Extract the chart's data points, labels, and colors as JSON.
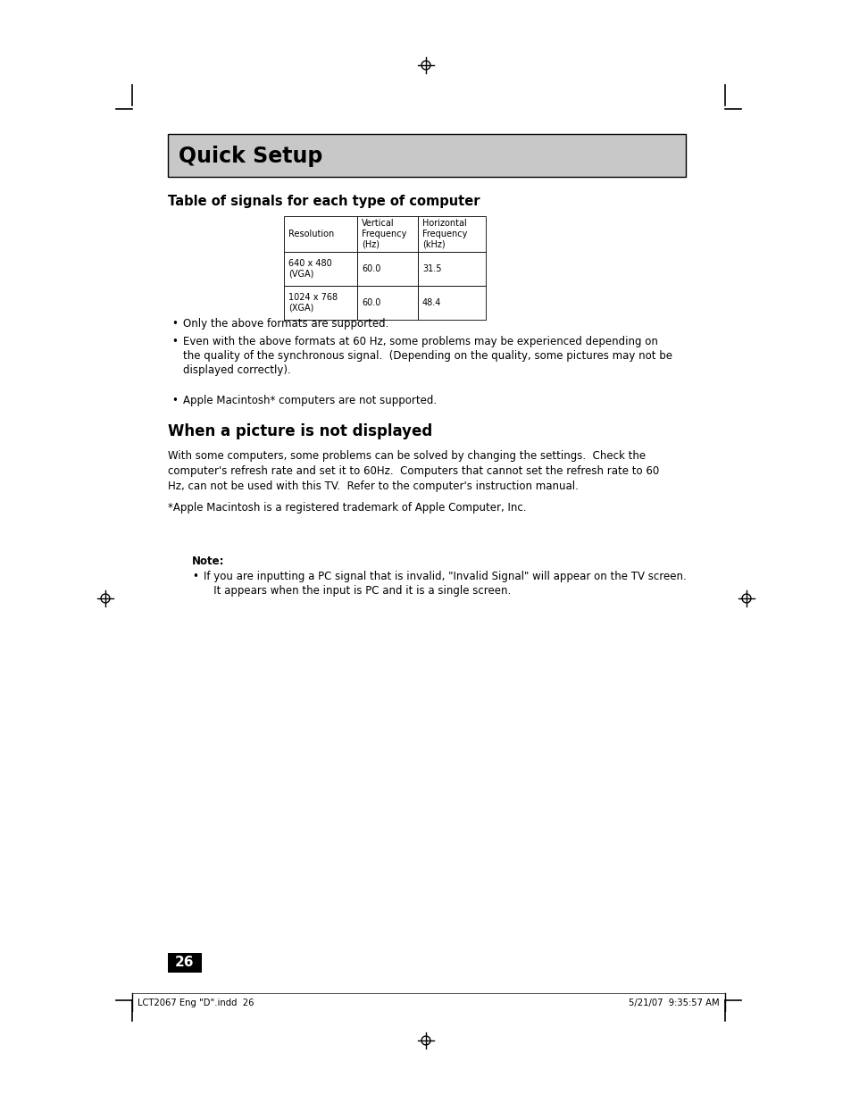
{
  "page_bg": "#ffffff",
  "title_text": "Quick Setup",
  "title_bg": "#c8c8c8",
  "title_fontsize": 17,
  "section1_heading": "Table of signals for each type of computer",
  "table_headers": [
    "Resolution",
    "Vertical\nFrequency\n(Hz)",
    "Horizontal\nFrequency\n(kHz)"
  ],
  "table_rows": [
    [
      "640 x 480\n(VGA)",
      "60.0",
      "31.5"
    ],
    [
      "1024 x 768\n(XGA)",
      "60.0",
      "48.4"
    ]
  ],
  "bullet1": "Only the above formats are supported.",
  "bullet2": "Even with the above formats at 60 Hz, some problems may be experienced depending on\nthe quality of the synchronous signal.  (Depending on the quality, some pictures may not be\ndisplayed correctly).",
  "bullet3": "Apple Macintosh* computers are not supported.",
  "section2_heading": "When a picture is not displayed",
  "section2_body": "With some computers, some problems can be solved by changing the settings.  Check the\ncomputer's refresh rate and set it to 60Hz.  Computers that cannot set the refresh rate to 60\nHz, can not be used with this TV.  Refer to the computer's instruction manual.",
  "trademark_note": "*Apple Macintosh is a registered trademark of Apple Computer, Inc.",
  "note_label": "Note:",
  "note_bullet": "If you are inputting a PC signal that is invalid, \"Invalid Signal\" will appear on the TV screen.\n   It appears when the input is PC and it is a single screen.",
  "page_number": "26",
  "footer_left": "LCT2067 Eng \"D\".indd  26",
  "footer_right": "5/21/07  9:35:57 AM"
}
